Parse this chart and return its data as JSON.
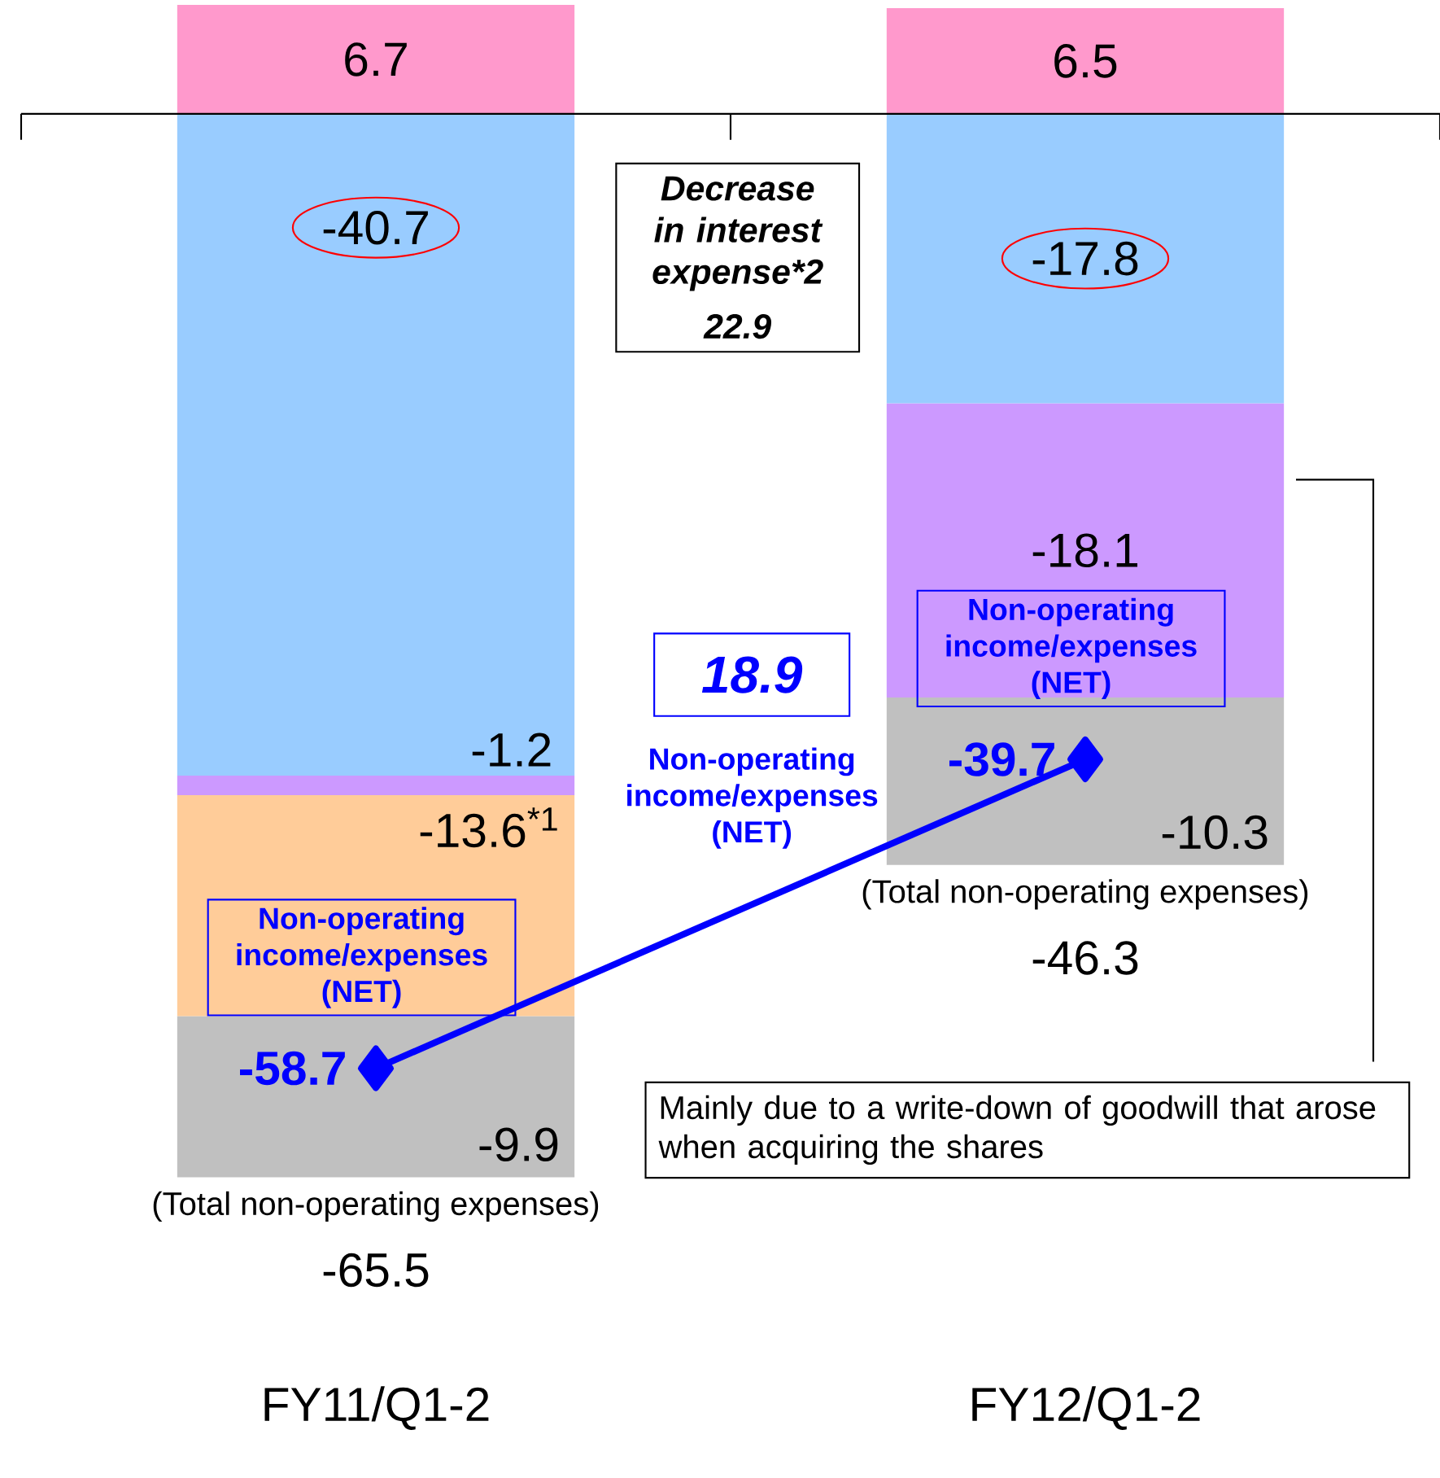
{
  "chart_data": {
    "type": "bar",
    "stacked": true,
    "categories": [
      "FY11/Q1-2",
      "FY12/Q1-2"
    ],
    "marker": "diamond",
    "series": [
      {
        "color": "#ff99cc",
        "values": [
          6.7,
          6.5
        ],
        "value_labels": [
          "6.7",
          "6.5"
        ]
      },
      {
        "color": "#99ccff",
        "values": [
          -40.7,
          -17.8
        ],
        "value_labels": [
          "-40.7",
          "-17.8"
        ]
      },
      {
        "color": "#cc99ff",
        "values": [
          -1.2,
          -18.1
        ],
        "value_labels": [
          "-1.2",
          "-18.1"
        ]
      },
      {
        "color": "#ffcc99",
        "values": [
          -13.6,
          null
        ],
        "value_labels": [
          "-13.6$^{*1}$",
          null
        ]
      },
      {
        "color": "#c0c0c0",
        "values": [
          -9.9,
          -10.3
        ],
        "value_labels": [
          "-9.9",
          "-10.3"
        ]
      },
      {
        "type": "line",
        "name": "Non-operating income/expenses (NET)",
        "color": "#0000ff",
        "values": [
          -58.7,
          -39.7
        ],
        "value_labels": [
          "-58.7",
          "-39.7"
        ]
      }
    ],
    "annotations": [
      "Decrease in interest expense*2",
      "22.9",
      "18.9",
      "Non-operating income/expenses (NET)",
      "(Total non-operating expenses)",
      "(Total non-operating expenses)",
      "Mainly due to a write-down of goodwill that arose when acquiring the shares",
      "-65.5",
      "-46.3"
    ]
  }
}
